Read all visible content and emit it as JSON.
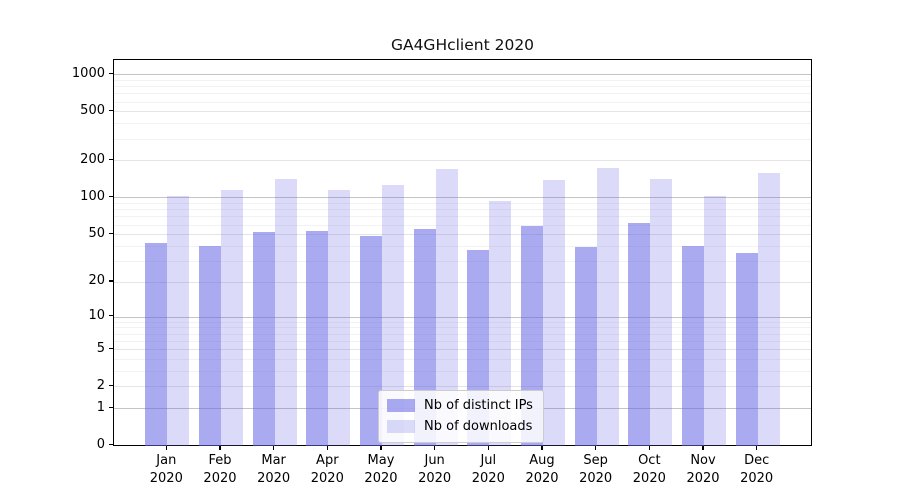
{
  "background_color": "#ffffff",
  "chart_data": {
    "type": "bar",
    "title": "GA4GHclient 2020",
    "categories": [
      "Jan",
      "Feb",
      "Mar",
      "Apr",
      "May",
      "Jun",
      "Jul",
      "Aug",
      "Sep",
      "Oct",
      "Nov",
      "Dec"
    ],
    "x_year_label": "2020",
    "series": [
      {
        "name": "Nb of distinct IPs",
        "color": "rgba(100,100,230,0.55)",
        "values": [
          42,
          40,
          52,
          53,
          48,
          55,
          37,
          58,
          39,
          62,
          40,
          35
        ]
      },
      {
        "name": "Nb of downloads",
        "color": "rgba(100,100,230,0.23)",
        "values": [
          102,
          114,
          140,
          114,
          127,
          171,
          93,
          138,
          174,
          140,
          103,
          158
        ]
      }
    ],
    "yscale": "symlog-log1p",
    "yticks": [
      0,
      1,
      2,
      5,
      10,
      20,
      50,
      100,
      200,
      500,
      1000
    ],
    "decade_ticks": [
      1,
      10,
      100,
      1000
    ],
    "minor_yticks": [
      3,
      4,
      6,
      7,
      8,
      9,
      30,
      40,
      60,
      70,
      80,
      90,
      300,
      400,
      600,
      700,
      800,
      900
    ],
    "ylim": [
      0,
      1300
    ],
    "grid": true,
    "legend_position": "lower center",
    "axis_color": "#000000",
    "grid_major_color": "#e4e4e4",
    "grid_decade_color": "#c4c4c4",
    "grid_minor_color": "#f2f2f2"
  }
}
